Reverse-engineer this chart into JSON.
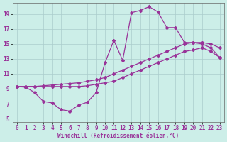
{
  "xlabel": "Windchill (Refroidissement éolien,°C)",
  "background_color": "#cceee8",
  "grid_color": "#aacccc",
  "line_color": "#993399",
  "xlim": [
    -0.5,
    23.5
  ],
  "ylim": [
    4.5,
    20.5
  ],
  "xticks": [
    0,
    1,
    2,
    3,
    4,
    5,
    6,
    7,
    8,
    9,
    10,
    11,
    12,
    13,
    14,
    15,
    16,
    17,
    18,
    19,
    20,
    21,
    22,
    23
  ],
  "yticks": [
    5,
    7,
    9,
    11,
    13,
    15,
    17,
    19
  ],
  "hours": [
    0,
    1,
    2,
    3,
    4,
    5,
    6,
    7,
    8,
    9,
    10,
    11,
    12,
    13,
    14,
    15,
    16,
    17,
    18,
    19,
    20,
    21,
    22,
    23
  ],
  "temp_curve": [
    9.3,
    9.2,
    8.5,
    7.3,
    7.1,
    6.2,
    6.0,
    6.8,
    7.2,
    8.5,
    12.5,
    15.5,
    12.8,
    19.2,
    19.5,
    20.0,
    19.3,
    17.2,
    17.2,
    15.2,
    15.2,
    15.0,
    14.5,
    13.2
  ],
  "upper_diag": [
    9.3,
    9.3,
    9.3,
    9.4,
    9.5,
    9.6,
    9.7,
    9.8,
    10.0,
    10.2,
    10.5,
    11.0,
    11.5,
    12.0,
    12.5,
    13.0,
    13.5,
    14.0,
    14.5,
    15.0,
    15.2,
    15.2,
    15.0,
    14.5
  ],
  "lower_diag": [
    9.3,
    9.3,
    9.3,
    9.3,
    9.3,
    9.3,
    9.3,
    9.3,
    9.4,
    9.6,
    9.8,
    10.0,
    10.5,
    11.0,
    11.5,
    12.0,
    12.5,
    13.0,
    13.5,
    14.0,
    14.2,
    14.5,
    14.0,
    13.2
  ],
  "tick_fontsize": 5.5,
  "xlabel_fontsize": 5.5
}
